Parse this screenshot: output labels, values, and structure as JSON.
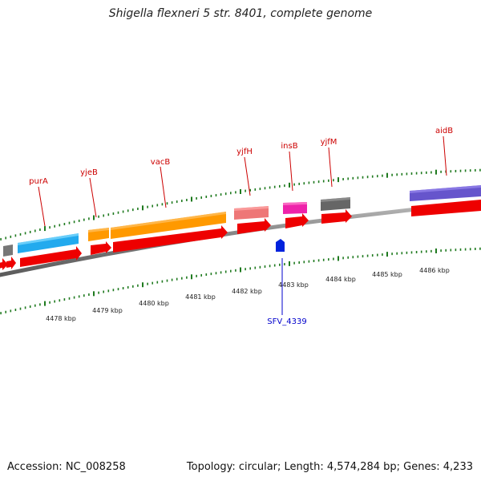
{
  "title": "Shigella flexneri 5 str. 8401, complete genome",
  "footer": {
    "accession": "Accession: NC_008258",
    "summary": "Topology: circular; Length: 4,574,284 bp; Genes: 4,233"
  },
  "colors": {
    "backbone": "#8a8a8a",
    "tick": "#1f7a1f",
    "gene_label": "#cc0000",
    "feature_label": "#0000cc",
    "cds": "#ee0000"
  },
  "scale_labels": [
    "4478 kbp",
    "4479 kbp",
    "4480 kbp",
    "4481 kbp",
    "4482 kbp",
    "4483 kbp",
    "4484 kbp",
    "4485 kbp",
    "4486 kbp"
  ],
  "gene_labels": [
    {
      "name": "purA",
      "color": "#cc0000"
    },
    {
      "name": "yjeB",
      "color": "#cc0000"
    },
    {
      "name": "vacB",
      "color": "#cc0000"
    },
    {
      "name": "yjfH",
      "color": "#cc0000"
    },
    {
      "name": "insB",
      "color": "#cc0000"
    },
    {
      "name": "yjfM",
      "color": "#cc0000"
    },
    {
      "name": "aidB",
      "color": "#cc0000"
    }
  ],
  "feature_labels": [
    {
      "name": "SFV_4339",
      "color": "#0000cc"
    }
  ],
  "gene_boxes": [
    {
      "color": "#777777"
    },
    {
      "color": "#22aaee"
    },
    {
      "color": "#ff9900"
    },
    {
      "color": "#ff9900"
    },
    {
      "color": "#ee7777"
    },
    {
      "color": "#ee22aa"
    },
    {
      "color": "#777777"
    },
    {
      "color": "#6655cc"
    }
  ]
}
